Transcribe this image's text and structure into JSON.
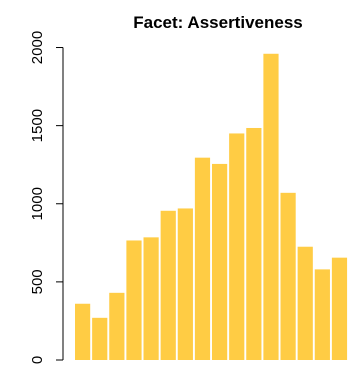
{
  "chart_data": {
    "type": "bar",
    "title": "Facet: Assertiveness",
    "xlabel": "",
    "ylabel": "",
    "values": [
      360,
      270,
      430,
      765,
      785,
      955,
      970,
      1295,
      1255,
      1450,
      1485,
      1960,
      1070,
      725,
      580,
      655
    ],
    "ylim": [
      0,
      2050
    ],
    "yticks": [
      0,
      500,
      1000,
      1500,
      2000
    ],
    "ytick_labels": [
      "0",
      "500",
      "1000",
      "1500",
      "2000"
    ],
    "bar_color": "#FFCC44",
    "grid": false,
    "legend": "none"
  }
}
